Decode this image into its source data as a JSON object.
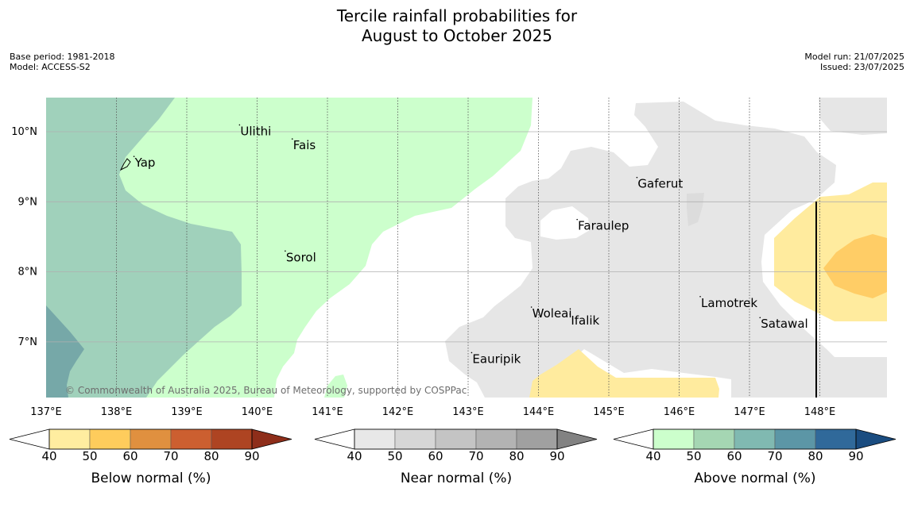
{
  "title_line1": "Tercile rainfall probabilities for",
  "title_line2": "August to October 2025",
  "base_period": "Base period: 1981-2018",
  "model": "Model: ACCESS-S2",
  "model_run": "Model run: 21/07/2025",
  "issued": "Issued: 23/07/2025",
  "copyright": "© Commonwealth of Australia 2025, Bureau of Meteorology, supported by COSPPac",
  "lon_labels": [
    "137°E",
    "138°E",
    "139°E",
    "140°E",
    "141°E",
    "142°E",
    "143°E",
    "144°E",
    "145°E",
    "146°E",
    "147°E",
    "148°E"
  ],
  "lat_labels": [
    "10°N",
    "9°N",
    "8°N",
    "7°N"
  ],
  "places": [
    {
      "name": "Yap",
      "lon": 138.25,
      "lat": 9.5
    },
    {
      "name": "Ulithi",
      "lon": 139.75,
      "lat": 9.95
    },
    {
      "name": "Fais",
      "lon": 140.5,
      "lat": 9.75
    },
    {
      "name": "Gaferut",
      "lon": 145.4,
      "lat": 9.2
    },
    {
      "name": "Faraulep",
      "lon": 144.55,
      "lat": 8.6
    },
    {
      "name": "Sorol",
      "lon": 140.4,
      "lat": 8.15
    },
    {
      "name": "Woleai",
      "lon": 143.9,
      "lat": 7.35
    },
    {
      "name": "Ifalik",
      "lon": 144.45,
      "lat": 7.25
    },
    {
      "name": "Lamotrek",
      "lon": 146.3,
      "lat": 7.5
    },
    {
      "name": "Satawal",
      "lon": 147.15,
      "lat": 7.2
    },
    {
      "name": "Eauripik",
      "lon": 143.05,
      "lat": 6.7
    }
  ],
  "legends": [
    {
      "label": "Below normal (%)",
      "ticks": [
        "40",
        "50",
        "60",
        "70",
        "80",
        "90"
      ],
      "colors": [
        "#ffeda0",
        "#fecc5c",
        "#e0903f",
        "#cc5f30",
        "#ae4422",
        "#8e2e1a"
      ]
    },
    {
      "label": "Near normal (%)",
      "ticks": [
        "40",
        "50",
        "60",
        "70",
        "80",
        "90"
      ],
      "colors": [
        "#e8e8e8",
        "#d6d6d6",
        "#c4c4c4",
        "#b3b3b3",
        "#a0a0a0",
        "#828282"
      ]
    },
    {
      "label": "Above normal (%)",
      "ticks": [
        "40",
        "50",
        "60",
        "70",
        "80",
        "90"
      ],
      "colors": [
        "#ccffcc",
        "#a5d6b3",
        "#80b9b1",
        "#5c96a6",
        "#30699a",
        "#1a4c80"
      ]
    }
  ],
  "colors": {
    "above_40": "#ccffcc",
    "above_50": "#a0d1bb",
    "above_60": "#76a8a8",
    "near_40": "#e6e6e6",
    "below_40": "#ffeb9e",
    "below_50": "#ffcd66"
  }
}
